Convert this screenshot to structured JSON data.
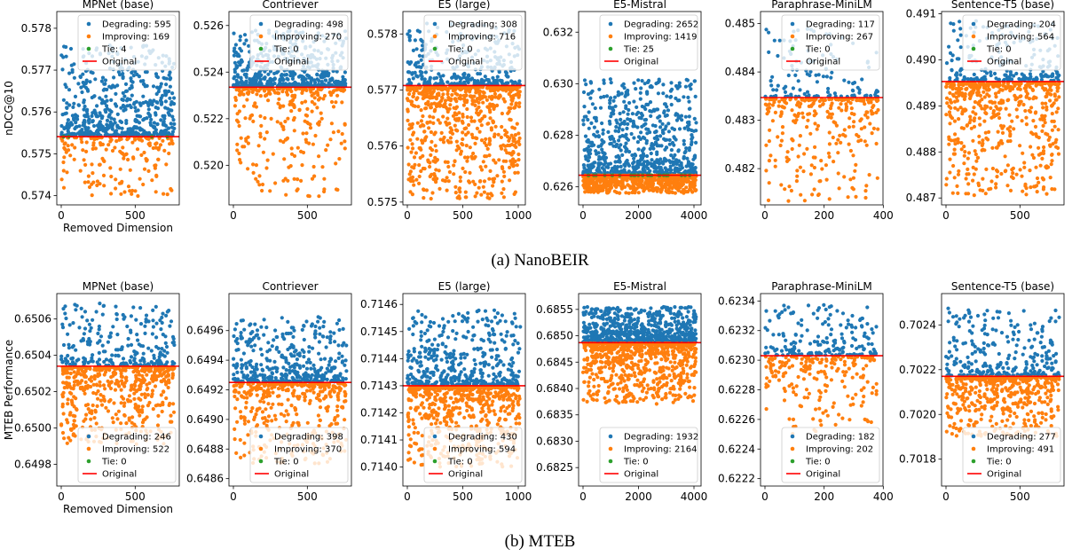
{
  "captions": [
    "(a) NanoBEIR",
    "(b) MTEB"
  ],
  "colors": {
    "degrading": "#1f77b4",
    "improving": "#ff7f0e",
    "tie": "#2ca02c",
    "original": "#ff0000"
  },
  "chart_data": [
    {
      "type": "scatter",
      "row": 0,
      "title": "MPNet (base)",
      "ylabel": "nDCG@10",
      "xlabel": "Removed Dimension",
      "xlim": [
        -30,
        798
      ],
      "xticks": [
        0,
        500
      ],
      "ylim": [
        0.57378,
        0.5784
      ],
      "yticks": [
        0.574,
        0.575,
        0.576,
        0.577,
        0.578
      ],
      "original": 0.57541,
      "degrade_max": 0.5776,
      "improve_min": 0.57395,
      "legend_loc": "upper right",
      "legend": [
        "Degrading: 595",
        "Improving: 169",
        "Tie: 4",
        "Original"
      ],
      "series": [
        {
          "name": "Degrading",
          "count": 595
        },
        {
          "name": "Improving",
          "count": 169
        },
        {
          "name": "Tie",
          "count": 4
        }
      ]
    },
    {
      "type": "scatter",
      "row": 0,
      "title": "Contriever",
      "ylabel": "",
      "xlabel": "",
      "xlim": [
        -30,
        798
      ],
      "xticks": [
        0,
        500
      ],
      "ylim": [
        0.5183,
        0.5266
      ],
      "yticks": [
        0.52,
        0.522,
        0.524,
        0.526
      ],
      "original": 0.52335,
      "degrade_max": 0.5258,
      "improve_min": 0.51865,
      "legend_loc": "upper right",
      "legend": [
        "Degrading: 498",
        "Improving: 270",
        "Tie: 0",
        "Original"
      ],
      "series": [
        {
          "name": "Degrading",
          "count": 498
        },
        {
          "name": "Improving",
          "count": 270
        },
        {
          "name": "Tie",
          "count": 0
        }
      ]
    },
    {
      "type": "scatter",
      "row": 0,
      "title": "E5 (large)",
      "ylabel": "",
      "xlabel": "",
      "xlim": [
        -40,
        1064
      ],
      "xticks": [
        0,
        500,
        1000
      ],
      "ylim": [
        0.57495,
        0.5784
      ],
      "yticks": [
        0.575,
        0.576,
        0.577,
        0.578
      ],
      "original": 0.57708,
      "degrade_max": 0.5782,
      "improve_min": 0.57505,
      "legend_loc": "upper right",
      "legend": [
        "Degrading: 308",
        "Improving: 716",
        "Tie: 0",
        "Original"
      ],
      "series": [
        {
          "name": "Degrading",
          "count": 308
        },
        {
          "name": "Improving",
          "count": 716
        },
        {
          "name": "Tie",
          "count": 0
        }
      ]
    },
    {
      "type": "scatter",
      "row": 0,
      "title": "E5-Mistral",
      "ylabel": "",
      "xlabel": "",
      "xlim": [
        -160,
        4256
      ],
      "xticks": [
        0,
        2000,
        4000
      ],
      "ylim": [
        0.6253,
        0.6328
      ],
      "yticks": [
        0.626,
        0.628,
        0.63,
        0.632
      ],
      "original": 0.62645,
      "degrade_max": 0.6302,
      "improve_min": 0.62575,
      "legend_loc": "upper right",
      "legend": [
        "Degrading: 2652",
        "Improving: 1419",
        "Tie: 25",
        "Original"
      ],
      "series": [
        {
          "name": "Degrading",
          "count": 2652
        },
        {
          "name": "Improving",
          "count": 1419
        },
        {
          "name": "Tie",
          "count": 25
        }
      ]
    },
    {
      "type": "scatter",
      "row": 0,
      "title": "Paraphrase-MiniLM",
      "ylabel": "",
      "xlabel": "",
      "xlim": [
        -15,
        399
      ],
      "xticks": [
        0,
        200,
        400
      ],
      "ylim": [
        0.48125,
        0.48525
      ],
      "yticks": [
        0.482,
        0.483,
        0.484,
        0.485
      ],
      "original": 0.48347,
      "degrade_max": 0.4849,
      "improve_min": 0.48125,
      "legend_loc": "upper right",
      "legend": [
        "Degrading: 117",
        "Improving: 267",
        "Tie: 0",
        "Original"
      ],
      "series": [
        {
          "name": "Degrading",
          "count": 117
        },
        {
          "name": "Improving",
          "count": 267
        },
        {
          "name": "Tie",
          "count": 0
        }
      ]
    },
    {
      "type": "scatter",
      "row": 0,
      "title": "Sentence-T5 (base)",
      "ylabel": "",
      "xlabel": "",
      "xlim": [
        -30,
        798
      ],
      "xticks": [
        0,
        500
      ],
      "ylim": [
        0.48685,
        0.49105
      ],
      "yticks": [
        0.487,
        0.488,
        0.489,
        0.49,
        0.491
      ],
      "original": 0.48953,
      "degrade_max": 0.4909,
      "improve_min": 0.48705,
      "legend_loc": "upper right",
      "legend": [
        "Degrading: 204",
        "Improving: 564",
        "Tie: 0",
        "Original"
      ],
      "series": [
        {
          "name": "Degrading",
          "count": 204
        },
        {
          "name": "Improving",
          "count": 564
        },
        {
          "name": "Tie",
          "count": 0
        }
      ]
    },
    {
      "type": "scatter",
      "row": 1,
      "title": "MPNet (base)",
      "ylabel": "MTEB Performance",
      "xlabel": "Removed Dimension",
      "xlim": [
        -30,
        798
      ],
      "xticks": [
        0,
        500
      ],
      "ylim": [
        0.64968,
        0.65074
      ],
      "yticks": [
        0.6498,
        0.65,
        0.6502,
        0.6504,
        0.6506
      ],
      "original": 0.65034,
      "degrade_max": 0.65069,
      "improve_min": 0.6499,
      "legend_loc": "lower right",
      "legend": [
        "Degrading: 246",
        "Improving: 522",
        "Tie: 0",
        "Original"
      ],
      "series": [
        {
          "name": "Degrading",
          "count": 246
        },
        {
          "name": "Improving",
          "count": 522
        },
        {
          "name": "Tie",
          "count": 0
        }
      ]
    },
    {
      "type": "scatter",
      "row": 1,
      "title": "Contriever",
      "ylabel": "",
      "xlabel": "",
      "xlim": [
        -30,
        798
      ],
      "xticks": [
        0,
        500
      ],
      "ylim": [
        0.64855,
        0.64985
      ],
      "yticks": [
        0.6486,
        0.6488,
        0.649,
        0.6492,
        0.6494,
        0.6496
      ],
      "original": 0.64925,
      "degrade_max": 0.6497,
      "improve_min": 0.6487,
      "legend_loc": "lower right",
      "legend": [
        "Degrading: 398",
        "Improving: 370",
        "Tie: 0",
        "Original"
      ],
      "series": [
        {
          "name": "Degrading",
          "count": 398
        },
        {
          "name": "Improving",
          "count": 370
        },
        {
          "name": "Tie",
          "count": 0
        }
      ]
    },
    {
      "type": "scatter",
      "row": 1,
      "title": "E5 (large)",
      "ylabel": "",
      "xlabel": "",
      "xlim": [
        -40,
        1064
      ],
      "xticks": [
        0,
        500,
        1000
      ],
      "ylim": [
        0.71393,
        0.71464
      ],
      "yticks": [
        0.714,
        0.7141,
        0.7142,
        0.7143,
        0.7144,
        0.7145,
        0.7146
      ],
      "original": 0.7143,
      "degrade_max": 0.71458,
      "improve_min": 0.714,
      "legend_loc": "lower right",
      "legend": [
        "Degrading: 430",
        "Improving: 594",
        "Tie: 0",
        "Original"
      ],
      "series": [
        {
          "name": "Degrading",
          "count": 430
        },
        {
          "name": "Improving",
          "count": 594
        },
        {
          "name": "Tie",
          "count": 0
        }
      ]
    },
    {
      "type": "scatter",
      "row": 1,
      "title": "E5-Mistral",
      "ylabel": "",
      "xlabel": "",
      "xlim": [
        -160,
        4256
      ],
      "xticks": [
        0,
        2000,
        4000
      ],
      "ylim": [
        0.68215,
        0.6858
      ],
      "yticks": [
        0.6825,
        0.683,
        0.6835,
        0.684,
        0.6845,
        0.685,
        0.6855
      ],
      "original": 0.68487,
      "degrade_max": 0.68555,
      "improve_min": 0.6837,
      "legend_loc": "lower right",
      "legend": [
        "Degrading: 1932",
        "Improving: 2164",
        "Tie: 0",
        "Original"
      ],
      "series": [
        {
          "name": "Degrading",
          "count": 1932
        },
        {
          "name": "Improving",
          "count": 2164
        },
        {
          "name": "Tie",
          "count": 0
        }
      ]
    },
    {
      "type": "scatter",
      "row": 1,
      "title": "Paraphrase-MiniLM",
      "ylabel": "",
      "xlabel": "",
      "xlim": [
        -15,
        399
      ],
      "xticks": [
        0,
        200,
        400
      ],
      "ylim": [
        0.62215,
        0.62345
      ],
      "yticks": [
        0.6222,
        0.6224,
        0.6226,
        0.6228,
        0.623,
        0.6232,
        0.6234
      ],
      "original": 0.62303,
      "degrade_max": 0.62338,
      "improve_min": 0.6225,
      "legend_loc": "lower right",
      "legend": [
        "Degrading: 182",
        "Improving: 202",
        "Tie: 0",
        "Original"
      ],
      "series": [
        {
          "name": "Degrading",
          "count": 182
        },
        {
          "name": "Improving",
          "count": 202
        },
        {
          "name": "Tie",
          "count": 0
        }
      ]
    },
    {
      "type": "scatter",
      "row": 1,
      "title": "Sentence-T5 (base)",
      "ylabel": "",
      "xlabel": "",
      "xlim": [
        -30,
        798
      ],
      "xticks": [
        0,
        500
      ],
      "ylim": [
        0.70168,
        0.70254
      ],
      "yticks": [
        0.7018,
        0.702,
        0.7022,
        0.7024
      ],
      "original": 0.70217,
      "degrade_max": 0.70248,
      "improve_min": 0.7019,
      "legend_loc": "lower right",
      "legend": [
        "Degrading: 277",
        "Improving: 491",
        "Tie: 0",
        "Original"
      ],
      "series": [
        {
          "name": "Degrading",
          "count": 277
        },
        {
          "name": "Improving",
          "count": 491
        },
        {
          "name": "Tie",
          "count": 0
        }
      ]
    }
  ]
}
